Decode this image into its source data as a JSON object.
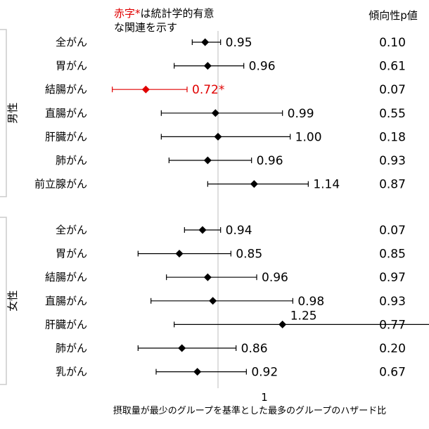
{
  "chart_data": {
    "type": "forest",
    "legend_prefix": "赤字",
    "legend_star": "*",
    "legend_line1_rest": "は統計学的有意",
    "legend_line2": "な関連を示す",
    "trend_header": "傾向性p値",
    "xlabel": "摂取量が最少のグループを基準とした最多のグループのハザード比",
    "reference_tick": "1",
    "reference_value": 1.0,
    "xlim": [
      0.55,
      1.6
    ],
    "colors": {
      "normal": "#000000",
      "significant": "#e00000",
      "reference_line": "#c8c8c8",
      "bracket": "#cccccc"
    },
    "groups": [
      {
        "label": "男性",
        "rows": [
          {
            "label": "全がん",
            "hr": 0.95,
            "lo": 0.9,
            "hi": 1.01,
            "text": "0.95",
            "p": "0.10",
            "significant": false
          },
          {
            "label": "胃がん",
            "hr": 0.96,
            "lo": 0.83,
            "hi": 1.1,
            "text": "0.96",
            "p": "0.61",
            "significant": false
          },
          {
            "label": "結腸がん",
            "hr": 0.72,
            "lo": 0.59,
            "hi": 0.88,
            "text": "0.72",
            "p": "0.07",
            "significant": true
          },
          {
            "label": "直腸がん",
            "hr": 0.99,
            "lo": 0.78,
            "hi": 1.25,
            "text": "0.99",
            "p": "0.55",
            "significant": false
          },
          {
            "label": "肝臓がん",
            "hr": 1.0,
            "lo": 0.78,
            "hi": 1.28,
            "text": "1.00",
            "p": "0.18",
            "significant": false
          },
          {
            "label": "肺がん",
            "hr": 0.96,
            "lo": 0.81,
            "hi": 1.13,
            "text": "0.96",
            "p": "0.93",
            "significant": false
          },
          {
            "label": "前立腺がん",
            "hr": 1.14,
            "lo": 0.96,
            "hi": 1.35,
            "text": "1.14",
            "p": "0.87",
            "significant": false
          }
        ]
      },
      {
        "label": "女性",
        "rows": [
          {
            "label": "全がん",
            "hr": 0.94,
            "lo": 0.87,
            "hi": 1.01,
            "text": "0.94",
            "p": "0.07",
            "significant": false
          },
          {
            "label": "胃がん",
            "hr": 0.85,
            "lo": 0.69,
            "hi": 1.05,
            "text": "0.85",
            "p": "0.85",
            "significant": false
          },
          {
            "label": "結腸がん",
            "hr": 0.96,
            "lo": 0.8,
            "hi": 1.15,
            "text": "0.96",
            "p": "0.97",
            "significant": false
          },
          {
            "label": "直腸がん",
            "hr": 0.98,
            "lo": 0.74,
            "hi": 1.29,
            "text": "0.98",
            "p": "0.93",
            "significant": false
          },
          {
            "label": "肝臓がん",
            "hr": 1.25,
            "lo": 0.83,
            "hi": 1.88,
            "text": "1.25",
            "p": "0.77",
            "significant": false
          },
          {
            "label": "肺がん",
            "hr": 0.86,
            "lo": 0.69,
            "hi": 1.07,
            "text": "0.86",
            "p": "0.20",
            "significant": false
          },
          {
            "label": "乳がん",
            "hr": 0.92,
            "lo": 0.76,
            "hi": 1.11,
            "text": "0.92",
            "p": "0.67",
            "significant": false
          }
        ]
      }
    ]
  }
}
